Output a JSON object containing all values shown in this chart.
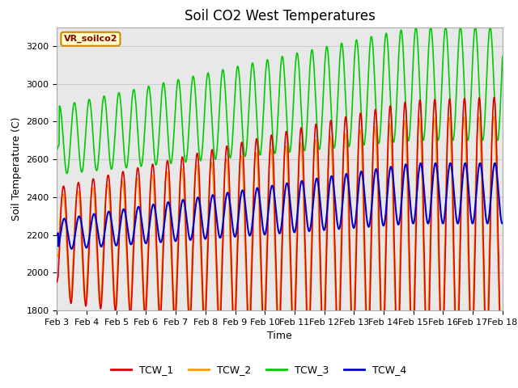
{
  "title": "Soil CO2 West Temperatures",
  "xlabel": "Time",
  "ylabel": "Soil Temperature (C)",
  "ylim": [
    1800,
    3300
  ],
  "xlim": [
    0,
    15
  ],
  "annotation_text": "VR_soilco2",
  "annotation_bg": "#ffffcc",
  "annotation_border": "#cc8800",
  "grid_color": "#cccccc",
  "plot_bg": "#e8e8e8",
  "fig_bg": "#ffffff",
  "line_colors": {
    "TCW_1": "#dd0000",
    "TCW_2": "#ff9900",
    "TCW_3": "#00cc00",
    "TCW_4": "#0000cc"
  },
  "xtick_labels": [
    "Feb 3",
    "Feb 4",
    "Feb 5",
    "Feb 6",
    "Feb 7",
    "Feb 8",
    "Feb 9",
    "Feb 10",
    "Feb 11",
    "Feb 12",
    "Feb 13",
    "Feb 14",
    "Feb 15",
    "Feb 16",
    "Feb 17",
    "Feb 18"
  ],
  "ytick_values": [
    1800,
    2000,
    2200,
    2400,
    2600,
    2800,
    3000,
    3200
  ],
  "title_fontsize": 12,
  "axis_label_fontsize": 9,
  "tick_fontsize": 8
}
